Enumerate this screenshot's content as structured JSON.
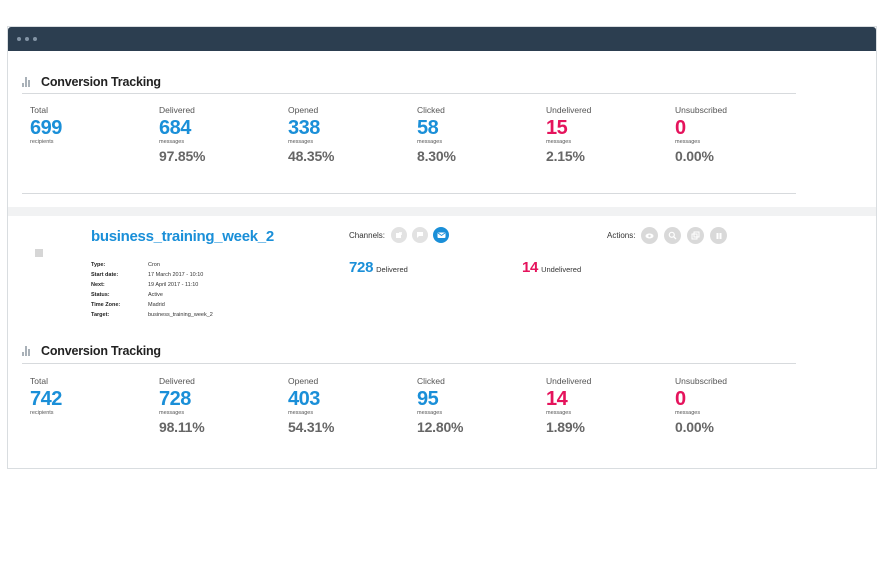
{
  "section1": {
    "title": "Conversion Tracking",
    "metrics": [
      {
        "label": "Total",
        "value": "699",
        "unit": "recipients",
        "pct": ""
      },
      {
        "label": "Delivered",
        "value": "684",
        "unit": "messages",
        "pct": "97.85%"
      },
      {
        "label": "Opened",
        "value": "338",
        "unit": "messages",
        "pct": "48.35%"
      },
      {
        "label": "Clicked",
        "value": "58",
        "unit": "messages",
        "pct": "8.30%"
      },
      {
        "label": "Undelivered",
        "value": "15",
        "unit": "messages",
        "pct": "2.15%"
      },
      {
        "label": "Unsubscribed",
        "value": "0",
        "unit": "messages",
        "pct": "0.00%"
      }
    ]
  },
  "campaign": {
    "name": "business_training_week_2",
    "details": [
      {
        "key": "Type:",
        "value": "Cron"
      },
      {
        "key": "Start date:",
        "value": "17 March 2017 - 10:10"
      },
      {
        "key": "Next:",
        "value": "19 April 2017 - 11:10"
      },
      {
        "key": "Status:",
        "value": "Active"
      },
      {
        "key": "Time Zone:",
        "value": "Madrid"
      },
      {
        "key": "Target:",
        "value": "business_training_week_2"
      }
    ],
    "channels_label": "Channels:",
    "actions_label": "Actions:",
    "delivered": {
      "value": "728",
      "label": "Delivered"
    },
    "undelivered": {
      "value": "14",
      "label": "Undelivered"
    }
  },
  "section2": {
    "title": "Conversion Tracking",
    "metrics": [
      {
        "label": "Total",
        "value": "742",
        "unit": "recipients",
        "pct": ""
      },
      {
        "label": "Delivered",
        "value": "728",
        "unit": "messages",
        "pct": "98.11%"
      },
      {
        "label": "Opened",
        "value": "403",
        "unit": "messages",
        "pct": "54.31%"
      },
      {
        "label": "Clicked",
        "value": "95",
        "unit": "messages",
        "pct": "12.80%"
      },
      {
        "label": "Undelivered",
        "value": "14",
        "unit": "messages",
        "pct": "1.89%"
      },
      {
        "label": "Unsubscribed",
        "value": "0",
        "unit": "messages",
        "pct": "0.00%"
      }
    ]
  },
  "colors": {
    "accent": "#1a8fd8",
    "negative": "#e5135c",
    "titlebar": "#2c3e50"
  },
  "icons": {
    "channels": [
      "push-icon",
      "sms-icon",
      "email-icon"
    ],
    "actions": [
      "view-icon",
      "search-icon",
      "duplicate-icon",
      "pause-icon"
    ]
  }
}
